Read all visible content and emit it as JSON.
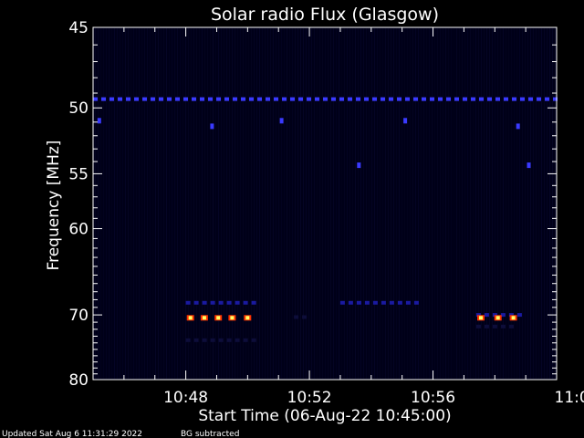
{
  "chart_data": {
    "type": "heatmap",
    "title": "Solar radio Flux (Glasgow)",
    "xlabel": "Start Time (06-Aug-22 10:45:00)",
    "ylabel": "Frequency [MHz]",
    "x_unit": "minutes after 10:45:00",
    "xlim": [
      0,
      15
    ],
    "ylim": [
      45,
      80
    ],
    "x_ticks": [
      {
        "label": "10:48",
        "value": 3
      },
      {
        "label": "10:52",
        "value": 7
      },
      {
        "label": "10:56",
        "value": 11
      },
      {
        "label": "11:00",
        "value": 15
      }
    ],
    "y_ticks": [
      {
        "label": "45",
        "value": 45
      },
      {
        "label": "50",
        "value": 50
      },
      {
        "label": "55",
        "value": 55
      },
      {
        "label": "60",
        "value": 60
      },
      {
        "label": "70",
        "value": 70
      },
      {
        "label": "80",
        "value": 80
      }
    ],
    "y_scale": "reciprocal",
    "colors": {
      "background": "#000000",
      "plot_background": "#000018",
      "axes": "#ffffff",
      "low": "#0d0d3a",
      "medium": "#1a1aa0",
      "high": "#3a3aff",
      "burst_core": "#ffff66",
      "burst_edge": "#ff3300"
    },
    "features": [
      {
        "kind": "dashed-band",
        "freq_mhz": 49.4,
        "t_start": 0.0,
        "t_end": 15.0,
        "intensity": "high"
      },
      {
        "kind": "dashed-band",
        "freq_mhz": 68.4,
        "t_start": 3.0,
        "t_end": 5.3,
        "intensity": "medium"
      },
      {
        "kind": "dashed-band",
        "freq_mhz": 73.6,
        "t_start": 3.0,
        "t_end": 5.3,
        "intensity": "low"
      },
      {
        "kind": "dashed-band",
        "freq_mhz": 68.4,
        "t_start": 8.0,
        "t_end": 10.5,
        "intensity": "medium"
      },
      {
        "kind": "dashed-band",
        "freq_mhz": 70.0,
        "t_start": 12.4,
        "t_end": 13.8,
        "intensity": "medium"
      },
      {
        "kind": "dashed-band",
        "freq_mhz": 71.6,
        "t_start": 12.4,
        "t_end": 13.6,
        "intensity": "low"
      },
      {
        "kind": "dashed-band",
        "freq_mhz": 70.3,
        "t_start": 6.5,
        "t_end": 7.0,
        "intensity": "low"
      },
      {
        "kind": "burst",
        "freq_mhz": 70.4,
        "t": 3.15
      },
      {
        "kind": "burst",
        "freq_mhz": 70.4,
        "t": 3.6
      },
      {
        "kind": "burst",
        "freq_mhz": 70.4,
        "t": 4.05
      },
      {
        "kind": "burst",
        "freq_mhz": 70.4,
        "t": 4.5
      },
      {
        "kind": "burst",
        "freq_mhz": 70.4,
        "t": 5.0
      },
      {
        "kind": "burst",
        "freq_mhz": 70.4,
        "t": 12.55
      },
      {
        "kind": "burst",
        "freq_mhz": 70.4,
        "t": 13.1
      },
      {
        "kind": "burst",
        "freq_mhz": 70.4,
        "t": 13.6
      },
      {
        "kind": "blip",
        "freq_mhz": 50.9,
        "t": 0.2
      },
      {
        "kind": "blip",
        "freq_mhz": 51.3,
        "t": 3.85
      },
      {
        "kind": "blip",
        "freq_mhz": 50.9,
        "t": 6.1
      },
      {
        "kind": "blip",
        "freq_mhz": 50.9,
        "t": 10.1
      },
      {
        "kind": "blip",
        "freq_mhz": 51.3,
        "t": 13.75
      },
      {
        "kind": "blip",
        "freq_mhz": 54.3,
        "t": 8.6
      },
      {
        "kind": "blip",
        "freq_mhz": 54.3,
        "t": 14.1
      }
    ]
  },
  "footer": {
    "updated": "Updated Sat Aug  6 11:31:29 2022",
    "note": "BG subtracted"
  }
}
